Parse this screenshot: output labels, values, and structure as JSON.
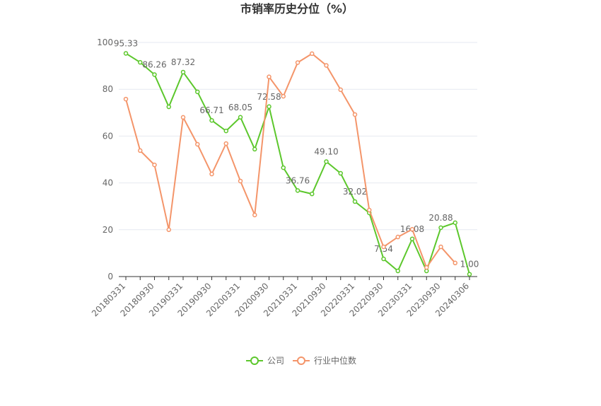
{
  "chart_data": {
    "type": "line",
    "title": "市销率历史分位（%）",
    "categories": [
      "20180331",
      null,
      "20180930",
      null,
      "20190331",
      null,
      "20190930",
      null,
      "20200331",
      null,
      "20200930",
      null,
      "20210331",
      null,
      "20210930",
      null,
      "20220331",
      null,
      "20220930",
      null,
      "20230331",
      null,
      "20230930",
      null,
      "20240306"
    ],
    "ylim": [
      0,
      100
    ],
    "yticks": [
      0,
      20,
      40,
      60,
      80,
      100
    ],
    "grid": true,
    "legend": "bottom",
    "series": [
      {
        "name": "公司",
        "color": "#5cc72c",
        "values": [
          95.33,
          91.5,
          86.26,
          72.5,
          87.32,
          78.9,
          66.71,
          62.2,
          68.05,
          54.4,
          72.58,
          46.5,
          36.76,
          35.3,
          49.1,
          44.1,
          32.02,
          27.2,
          7.54,
          2.4,
          16.08,
          2.4,
          20.88,
          23,
          1
        ],
        "value_labels": [
          "95.33",
          null,
          "86.26",
          null,
          "87.32",
          null,
          "66.71",
          null,
          "68.05",
          null,
          "72.58",
          null,
          "36.76",
          null,
          "49.10",
          null,
          "32.02",
          null,
          "7.54",
          null,
          "16.08",
          null,
          "20.88",
          null,
          "1.00"
        ]
      },
      {
        "name": "行业中位数",
        "color": "#f4956a",
        "values": [
          75.8,
          53.8,
          47.7,
          20,
          68,
          56.5,
          43.8,
          56.8,
          40.8,
          26.3,
          85.3,
          77,
          91.4,
          95.2,
          90.2,
          79.8,
          69.2,
          28.4,
          12.7,
          16.9,
          20.2,
          3.9,
          12.7,
          5.8,
          null
        ]
      }
    ]
  }
}
